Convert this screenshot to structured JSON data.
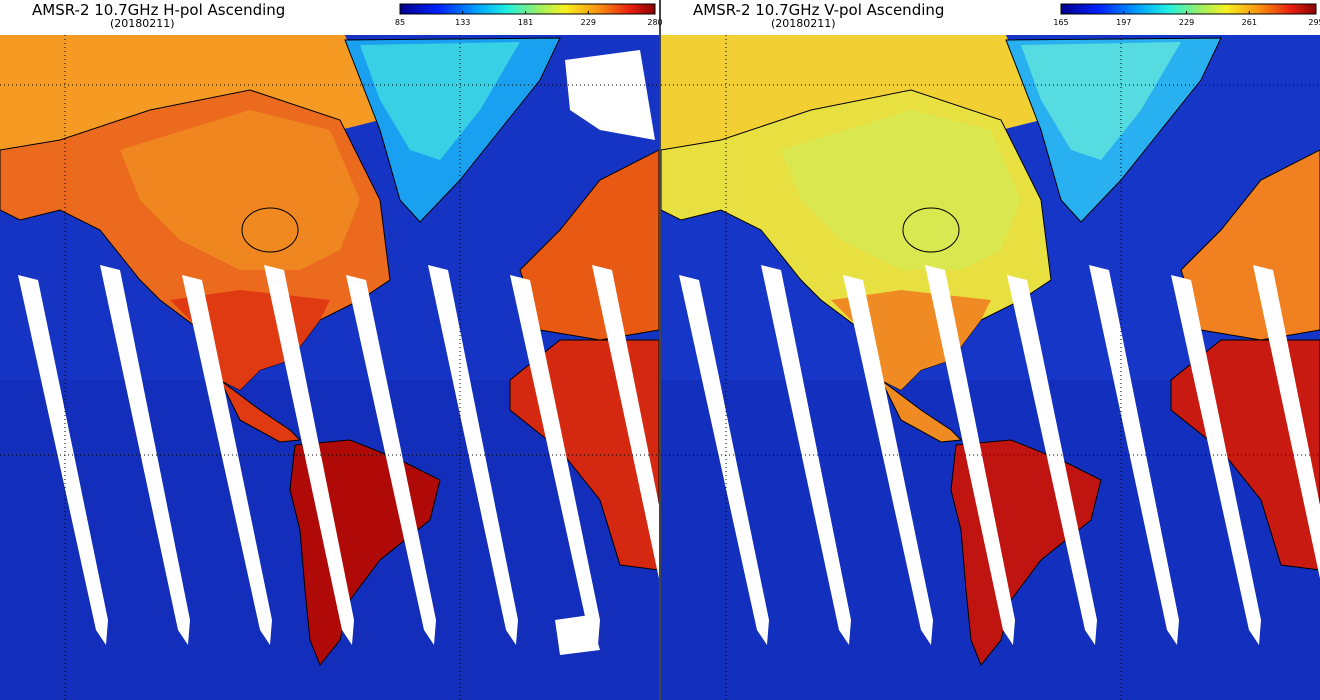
{
  "panels": [
    {
      "title": "AMSR-2 10.7GHz H-pol Ascending",
      "date": "(20180211)",
      "colorbar_ticks": [
        85,
        133,
        181,
        229,
        280
      ]
    },
    {
      "title": "AMSR-2 10.7GHz V-pol Ascending",
      "date": "(20180211)",
      "colorbar_ticks": [
        165,
        197,
        229,
        261,
        295
      ]
    }
  ]
}
